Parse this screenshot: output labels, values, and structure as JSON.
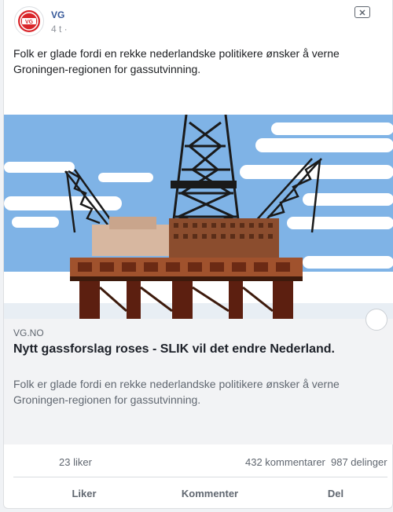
{
  "post": {
    "author": "VG",
    "time": "4 t ·",
    "text": "Folk er glade fordi en rekke nederlandske politikere ønsker å verne Groningen-regionen for gassutvinning.",
    "avatar_icon": "vg-logo-icon",
    "close_icon": "close-icon"
  },
  "link": {
    "source": "VG.NO",
    "title": "Nytt gassforslag roses - SLIK vil det endre Nederland.",
    "description": "Folk er glade fordi en rekke nederlandske politikere ønsker å verne Groningen-regionen for gassutvinning.",
    "image_icon": "oil-platform-illustration"
  },
  "stats": {
    "likes": "23 liker",
    "comments": "432 kommentarer",
    "shares": "987 delinger"
  },
  "actions": {
    "like": "Liker",
    "comment": "Kommenter",
    "share": "Del"
  },
  "colors": {
    "author_link": "#365899",
    "sky": "#7fb3e6",
    "vg_red": "#d9252a"
  }
}
